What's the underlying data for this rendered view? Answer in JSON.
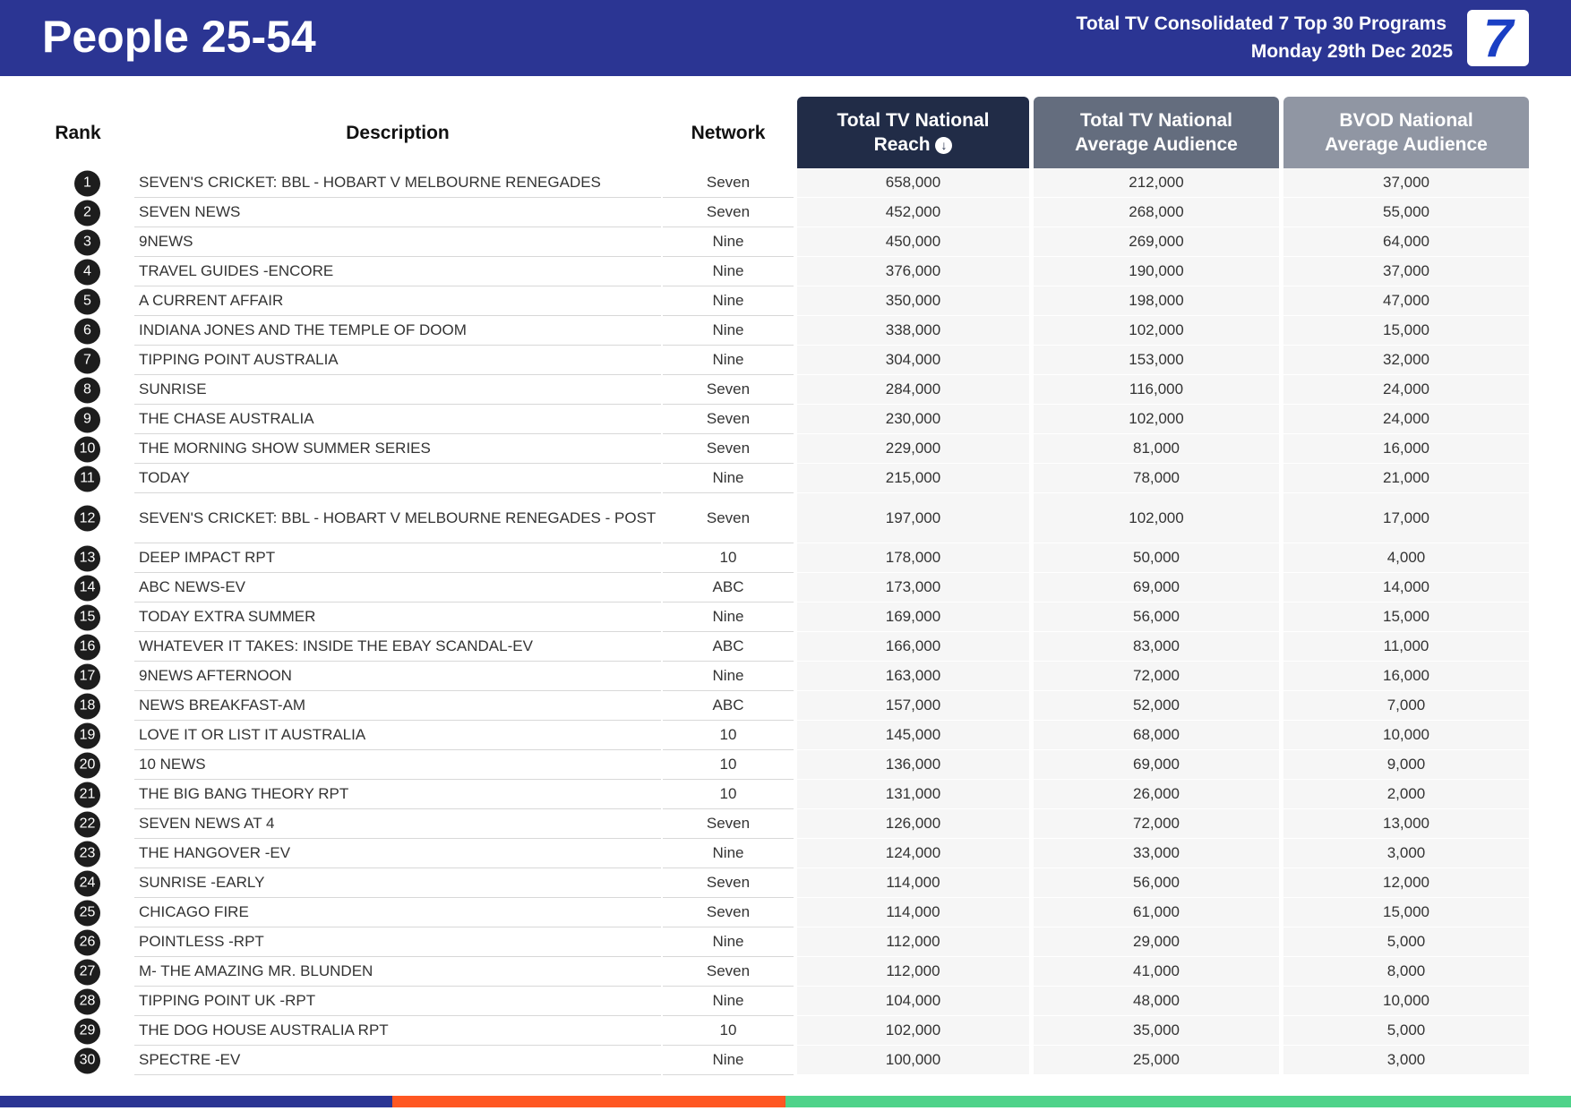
{
  "header": {
    "title": "People 25-54",
    "subtitle": "Total TV Consolidated 7 Top 30 Programs",
    "date": "Monday 29th Dec 2025",
    "logo_text": "7"
  },
  "columns": {
    "rank": "Rank",
    "description": "Description",
    "network": "Network",
    "reach": "Total TV National Reach",
    "avg": "Total TV National Average Audience",
    "bvod": "BVOD National Average Audience",
    "sort_icon": "arrow-down-circle-icon"
  },
  "colors": {
    "header": "#2b3593",
    "bar": [
      "#2b3593",
      "#ff5722",
      "#4fd38a"
    ]
  },
  "rows": [
    {
      "rank": "1",
      "desc": "SEVEN'S CRICKET: BBL - HOBART V MELBOURNE RENEGADES",
      "net": "Seven",
      "reach": "658,000",
      "avg": "212,000",
      "bvod": "37,000"
    },
    {
      "rank": "2",
      "desc": "SEVEN NEWS",
      "net": "Seven",
      "reach": "452,000",
      "avg": "268,000",
      "bvod": "55,000"
    },
    {
      "rank": "3",
      "desc": "9NEWS",
      "net": "Nine",
      "reach": "450,000",
      "avg": "269,000",
      "bvod": "64,000"
    },
    {
      "rank": "4",
      "desc": "TRAVEL GUIDES -ENCORE",
      "net": "Nine",
      "reach": "376,000",
      "avg": "190,000",
      "bvod": "37,000"
    },
    {
      "rank": "5",
      "desc": "A CURRENT AFFAIR",
      "net": "Nine",
      "reach": "350,000",
      "avg": "198,000",
      "bvod": "47,000"
    },
    {
      "rank": "6",
      "desc": "INDIANA JONES AND THE TEMPLE OF DOOM",
      "net": "Nine",
      "reach": "338,000",
      "avg": "102,000",
      "bvod": "15,000"
    },
    {
      "rank": "7",
      "desc": "TIPPING POINT AUSTRALIA",
      "net": "Nine",
      "reach": "304,000",
      "avg": "153,000",
      "bvod": "32,000"
    },
    {
      "rank": "8",
      "desc": "SUNRISE",
      "net": "Seven",
      "reach": "284,000",
      "avg": "116,000",
      "bvod": "24,000"
    },
    {
      "rank": "9",
      "desc": "THE CHASE AUSTRALIA",
      "net": "Seven",
      "reach": "230,000",
      "avg": "102,000",
      "bvod": "24,000"
    },
    {
      "rank": "10",
      "desc": "THE MORNING SHOW SUMMER SERIES",
      "net": "Seven",
      "reach": "229,000",
      "avg": "81,000",
      "bvod": "16,000"
    },
    {
      "rank": "11",
      "desc": "TODAY",
      "net": "Nine",
      "reach": "215,000",
      "avg": "78,000",
      "bvod": "21,000"
    },
    {
      "rank": "12",
      "desc": "SEVEN'S CRICKET: BBL - HOBART V MELBOURNE RENEGADES - POST",
      "net": "Seven",
      "reach": "197,000",
      "avg": "102,000",
      "bvod": "17,000"
    },
    {
      "rank": "13",
      "desc": "DEEP IMPACT RPT",
      "net": "10",
      "reach": "178,000",
      "avg": "50,000",
      "bvod": "4,000"
    },
    {
      "rank": "14",
      "desc": "ABC NEWS-EV",
      "net": "ABC",
      "reach": "173,000",
      "avg": "69,000",
      "bvod": "14,000"
    },
    {
      "rank": "15",
      "desc": "TODAY EXTRA SUMMER",
      "net": "Nine",
      "reach": "169,000",
      "avg": "56,000",
      "bvod": "15,000"
    },
    {
      "rank": "16",
      "desc": "WHATEVER IT TAKES: INSIDE THE EBAY SCANDAL-EV",
      "net": "ABC",
      "reach": "166,000",
      "avg": "83,000",
      "bvod": "11,000"
    },
    {
      "rank": "17",
      "desc": "9NEWS AFTERNOON",
      "net": "Nine",
      "reach": "163,000",
      "avg": "72,000",
      "bvod": "16,000"
    },
    {
      "rank": "18",
      "desc": "NEWS BREAKFAST-AM",
      "net": "ABC",
      "reach": "157,000",
      "avg": "52,000",
      "bvod": "7,000"
    },
    {
      "rank": "19",
      "desc": "LOVE IT OR LIST IT AUSTRALIA",
      "net": "10",
      "reach": "145,000",
      "avg": "68,000",
      "bvod": "10,000"
    },
    {
      "rank": "20",
      "desc": "10 NEWS",
      "net": "10",
      "reach": "136,000",
      "avg": "69,000",
      "bvod": "9,000"
    },
    {
      "rank": "21",
      "desc": "THE BIG BANG THEORY RPT",
      "net": "10",
      "reach": "131,000",
      "avg": "26,000",
      "bvod": "2,000"
    },
    {
      "rank": "22",
      "desc": "SEVEN NEWS AT 4",
      "net": "Seven",
      "reach": "126,000",
      "avg": "72,000",
      "bvod": "13,000"
    },
    {
      "rank": "23",
      "desc": "THE HANGOVER -EV",
      "net": "Nine",
      "reach": "124,000",
      "avg": "33,000",
      "bvod": "3,000"
    },
    {
      "rank": "24",
      "desc": "SUNRISE -EARLY",
      "net": "Seven",
      "reach": "114,000",
      "avg": "56,000",
      "bvod": "12,000"
    },
    {
      "rank": "25",
      "desc": "CHICAGO FIRE",
      "net": "Seven",
      "reach": "114,000",
      "avg": "61,000",
      "bvod": "15,000"
    },
    {
      "rank": "26",
      "desc": "POINTLESS -RPT",
      "net": "Nine",
      "reach": "112,000",
      "avg": "29,000",
      "bvod": "5,000"
    },
    {
      "rank": "27",
      "desc": "M- THE AMAZING MR. BLUNDEN",
      "net": "Seven",
      "reach": "112,000",
      "avg": "41,000",
      "bvod": "8,000"
    },
    {
      "rank": "28",
      "desc": "TIPPING POINT UK -RPT",
      "net": "Nine",
      "reach": "104,000",
      "avg": "48,000",
      "bvod": "10,000"
    },
    {
      "rank": "29",
      "desc": "THE DOG HOUSE AUSTRALIA RPT",
      "net": "10",
      "reach": "102,000",
      "avg": "35,000",
      "bvod": "5,000"
    },
    {
      "rank": "30",
      "desc": "SPECTRE -EV",
      "net": "Nine",
      "reach": "100,000",
      "avg": "25,000",
      "bvod": "3,000"
    }
  ]
}
